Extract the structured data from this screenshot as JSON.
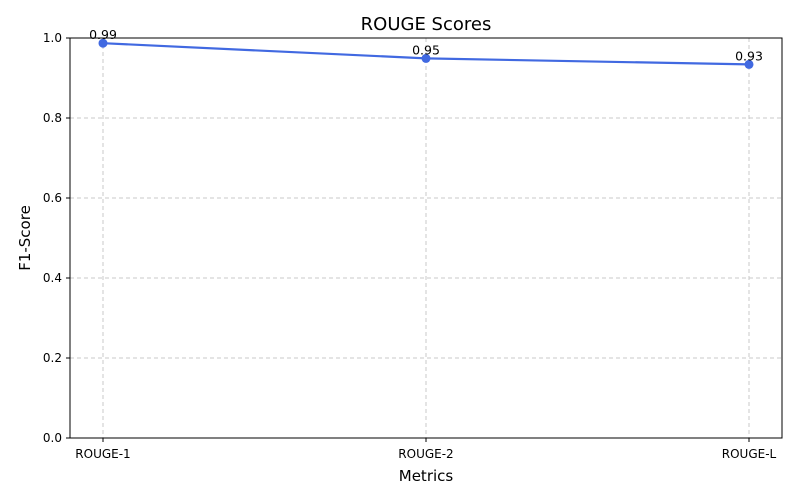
{
  "chart_data": {
    "type": "line",
    "title": "ROUGE Scores",
    "xlabel": "Metrics",
    "ylabel": "F1-Score",
    "categories": [
      "ROUGE-1",
      "ROUGE-2",
      "ROUGE-L"
    ],
    "values": [
      0.987,
      0.949,
      0.934
    ],
    "data_labels": [
      "0.99",
      "0.95",
      "0.93"
    ],
    "ylim": [
      0,
      1.0
    ],
    "yticks": [
      0.0,
      0.2,
      0.4,
      0.6,
      0.8,
      1.0
    ],
    "ytick_labels": [
      "0.0",
      "0.2",
      "0.4",
      "0.6",
      "0.8",
      "1.0"
    ],
    "grid": true,
    "line_color": "#4169e1",
    "grid_color": "#c8c8c8"
  }
}
